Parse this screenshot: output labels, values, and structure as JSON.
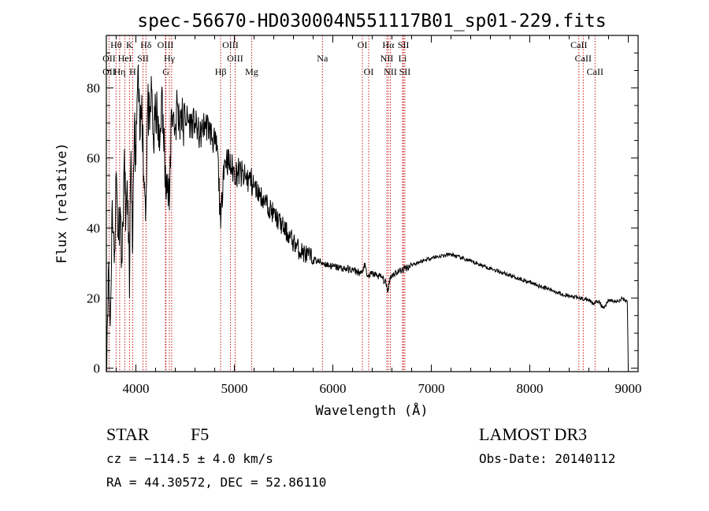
{
  "chart_data": {
    "type": "line",
    "title": "spec-56670-HD030004N551117B01_sp01-229.fits",
    "xlabel": "Wavelength (Å)",
    "ylabel": "Flux (relative)",
    "xlim": [
      3700,
      9100
    ],
    "ylim": [
      -1,
      95
    ],
    "xticks": [
      4000,
      5000,
      6000,
      7000,
      8000,
      9000
    ],
    "yticks": [
      0,
      20,
      40,
      60,
      80
    ],
    "series": [
      {
        "name": "flux",
        "x": [
          3700,
          3720,
          3740,
          3760,
          3780,
          3800,
          3820,
          3840,
          3860,
          3880,
          3900,
          3920,
          3935,
          3950,
          3968,
          3985,
          4000,
          4020,
          4040,
          4060,
          4080,
          4102,
          4120,
          4140,
          4160,
          4180,
          4200,
          4220,
          4240,
          4260,
          4280,
          4300,
          4320,
          4340,
          4360,
          4380,
          4400,
          4420,
          4440,
          4460,
          4480,
          4500,
          4550,
          4600,
          4650,
          4700,
          4750,
          4800,
          4830,
          4861,
          4890,
          4920,
          4950,
          5000,
          5050,
          5100,
          5150,
          5200,
          5250,
          5300,
          5350,
          5400,
          5450,
          5500,
          5550,
          5600,
          5650,
          5700,
          5750,
          5800,
          5900,
          6000,
          6100,
          6200,
          6250,
          6300,
          6320,
          6350,
          6400,
          6450,
          6500,
          6540,
          6563,
          6580,
          6620,
          6700,
          6800,
          6900,
          7000,
          7100,
          7200,
          7300,
          7400,
          7500,
          7600,
          7700,
          7800,
          7900,
          8000,
          8100,
          8200,
          8300,
          8400,
          8500,
          8600,
          8650,
          8700,
          8750,
          8800,
          8850,
          8900,
          8940,
          8990,
          9000
        ],
        "y": [
          2,
          28,
          12,
          48,
          30,
          56,
          38,
          46,
          30,
          58,
          44,
          48,
          20,
          62,
          35,
          70,
          58,
          85,
          65,
          78,
          55,
          47,
          76,
          68,
          80,
          63,
          74,
          70,
          62,
          78,
          66,
          58,
          52,
          45,
          74,
          72,
          68,
          76,
          70,
          74,
          68,
          72,
          70,
          70,
          66,
          70,
          68,
          64,
          62,
          40,
          58,
          60,
          58,
          56,
          56,
          54,
          54,
          52,
          50,
          48,
          46,
          44,
          42,
          40,
          38,
          36,
          34,
          33,
          32,
          31,
          30,
          29,
          28.5,
          28,
          27.5,
          27,
          30,
          26,
          27,
          26.5,
          26,
          24,
          22,
          26,
          27,
          28,
          29.5,
          30.5,
          31.5,
          32,
          32.5,
          31.5,
          30.5,
          29.5,
          28.5,
          27.5,
          26.5,
          25.5,
          24.5,
          23.5,
          22.5,
          21.5,
          20.5,
          20,
          19.5,
          18.5,
          19,
          17,
          19.5,
          19,
          19,
          20,
          19,
          0
        ]
      }
    ],
    "lines": [
      {
        "name": "O II",
        "x": 3727
      },
      {
        "name": "Hθ",
        "x": 3798
      },
      {
        "name": "Hη",
        "x": 3835
      },
      {
        "name": "He I",
        "x": 3889
      },
      {
        "name": "K",
        "x": 3934
      },
      {
        "name": "H",
        "x": 3968
      },
      {
        "name": "S II",
        "x": 4072
      },
      {
        "name": "Hδ",
        "x": 4102
      },
      {
        "name": "O III",
        "x": 4300
      },
      {
        "name": "G",
        "x": 4305
      },
      {
        "name": "Hγ",
        "x": 4340
      },
      {
        "name": "O III",
        "x": 4363
      },
      {
        "name": "Hβ",
        "x": 4861
      },
      {
        "name": "O III",
        "x": 4959
      },
      {
        "name": "O III",
        "x": 5007
      },
      {
        "name": "Mg",
        "x": 5175
      },
      {
        "name": "Na",
        "x": 5894
      },
      {
        "name": "O I",
        "x": 6300
      },
      {
        "name": "O I",
        "x": 6364
      },
      {
        "name": "N II",
        "x": 6548
      },
      {
        "name": "Hα",
        "x": 6563
      },
      {
        "name": "N II",
        "x": 6584
      },
      {
        "name": "Li",
        "x": 6708
      },
      {
        "name": "S II",
        "x": 6717
      },
      {
        "name": "S II",
        "x": 6731
      },
      {
        "name": "Ca II",
        "x": 8498
      },
      {
        "name": "Ca II",
        "x": 8542
      },
      {
        "name": "Ca II",
        "x": 8662
      }
    ]
  },
  "line_labels": [
    {
      "text": "Hθ",
      "row": 1,
      "x": 3798
    },
    {
      "text": "K",
      "row": 1,
      "x": 3934
    },
    {
      "text": "Hδ",
      "row": 1,
      "x": 4102
    },
    {
      "text": "OIII",
      "row": 1,
      "x": 4300
    },
    {
      "text": "OIII",
      "row": 1,
      "x": 4959
    },
    {
      "text": "OI",
      "row": 1,
      "x": 6300
    },
    {
      "text": "Hα",
      "row": 1,
      "x": 6563
    },
    {
      "text": "SII",
      "row": 1,
      "x": 6717
    },
    {
      "text": "CaII",
      "row": 1,
      "x": 8498
    },
    {
      "text": "OII",
      "row": 2,
      "x": 3727
    },
    {
      "text": "HeI",
      "row": 2,
      "x": 3889
    },
    {
      "text": "SII",
      "row": 2,
      "x": 4072
    },
    {
      "text": "Hγ",
      "row": 2,
      "x": 4340
    },
    {
      "text": "OIII",
      "row": 2,
      "x": 5007
    },
    {
      "text": "Na",
      "row": 2,
      "x": 5894
    },
    {
      "text": "NII",
      "row": 2,
      "x": 6548
    },
    {
      "text": "Li",
      "row": 2,
      "x": 6708
    },
    {
      "text": "CaII",
      "row": 2,
      "x": 8542
    },
    {
      "text": "OII",
      "row": 3,
      "x": 3727
    },
    {
      "text": "Hη",
      "row": 3,
      "x": 3835
    },
    {
      "text": "H",
      "row": 3,
      "x": 3968
    },
    {
      "text": "G",
      "row": 3,
      "x": 4305
    },
    {
      "text": "Hβ",
      "row": 3,
      "x": 4861
    },
    {
      "text": "Mg",
      "row": 3,
      "x": 5175
    },
    {
      "text": "OI",
      "row": 3,
      "x": 6364
    },
    {
      "text": "NII",
      "row": 3,
      "x": 6584
    },
    {
      "text": "SII",
      "row": 3,
      "x": 6731
    },
    {
      "text": "CaII",
      "row": 3,
      "x": 8662
    }
  ],
  "info": {
    "class": "STAR",
    "subclass": "F5",
    "cz": "cz = −114.5 ± 4.0 km/s",
    "radec": "RA =  44.30572, DEC =  52.86110",
    "survey": "LAMOST DR3",
    "obsdate": "Obs-Date: 20140112"
  },
  "colors": {
    "line_marker": "#c00000",
    "spectrum": "#000000",
    "axis": "#000000"
  }
}
